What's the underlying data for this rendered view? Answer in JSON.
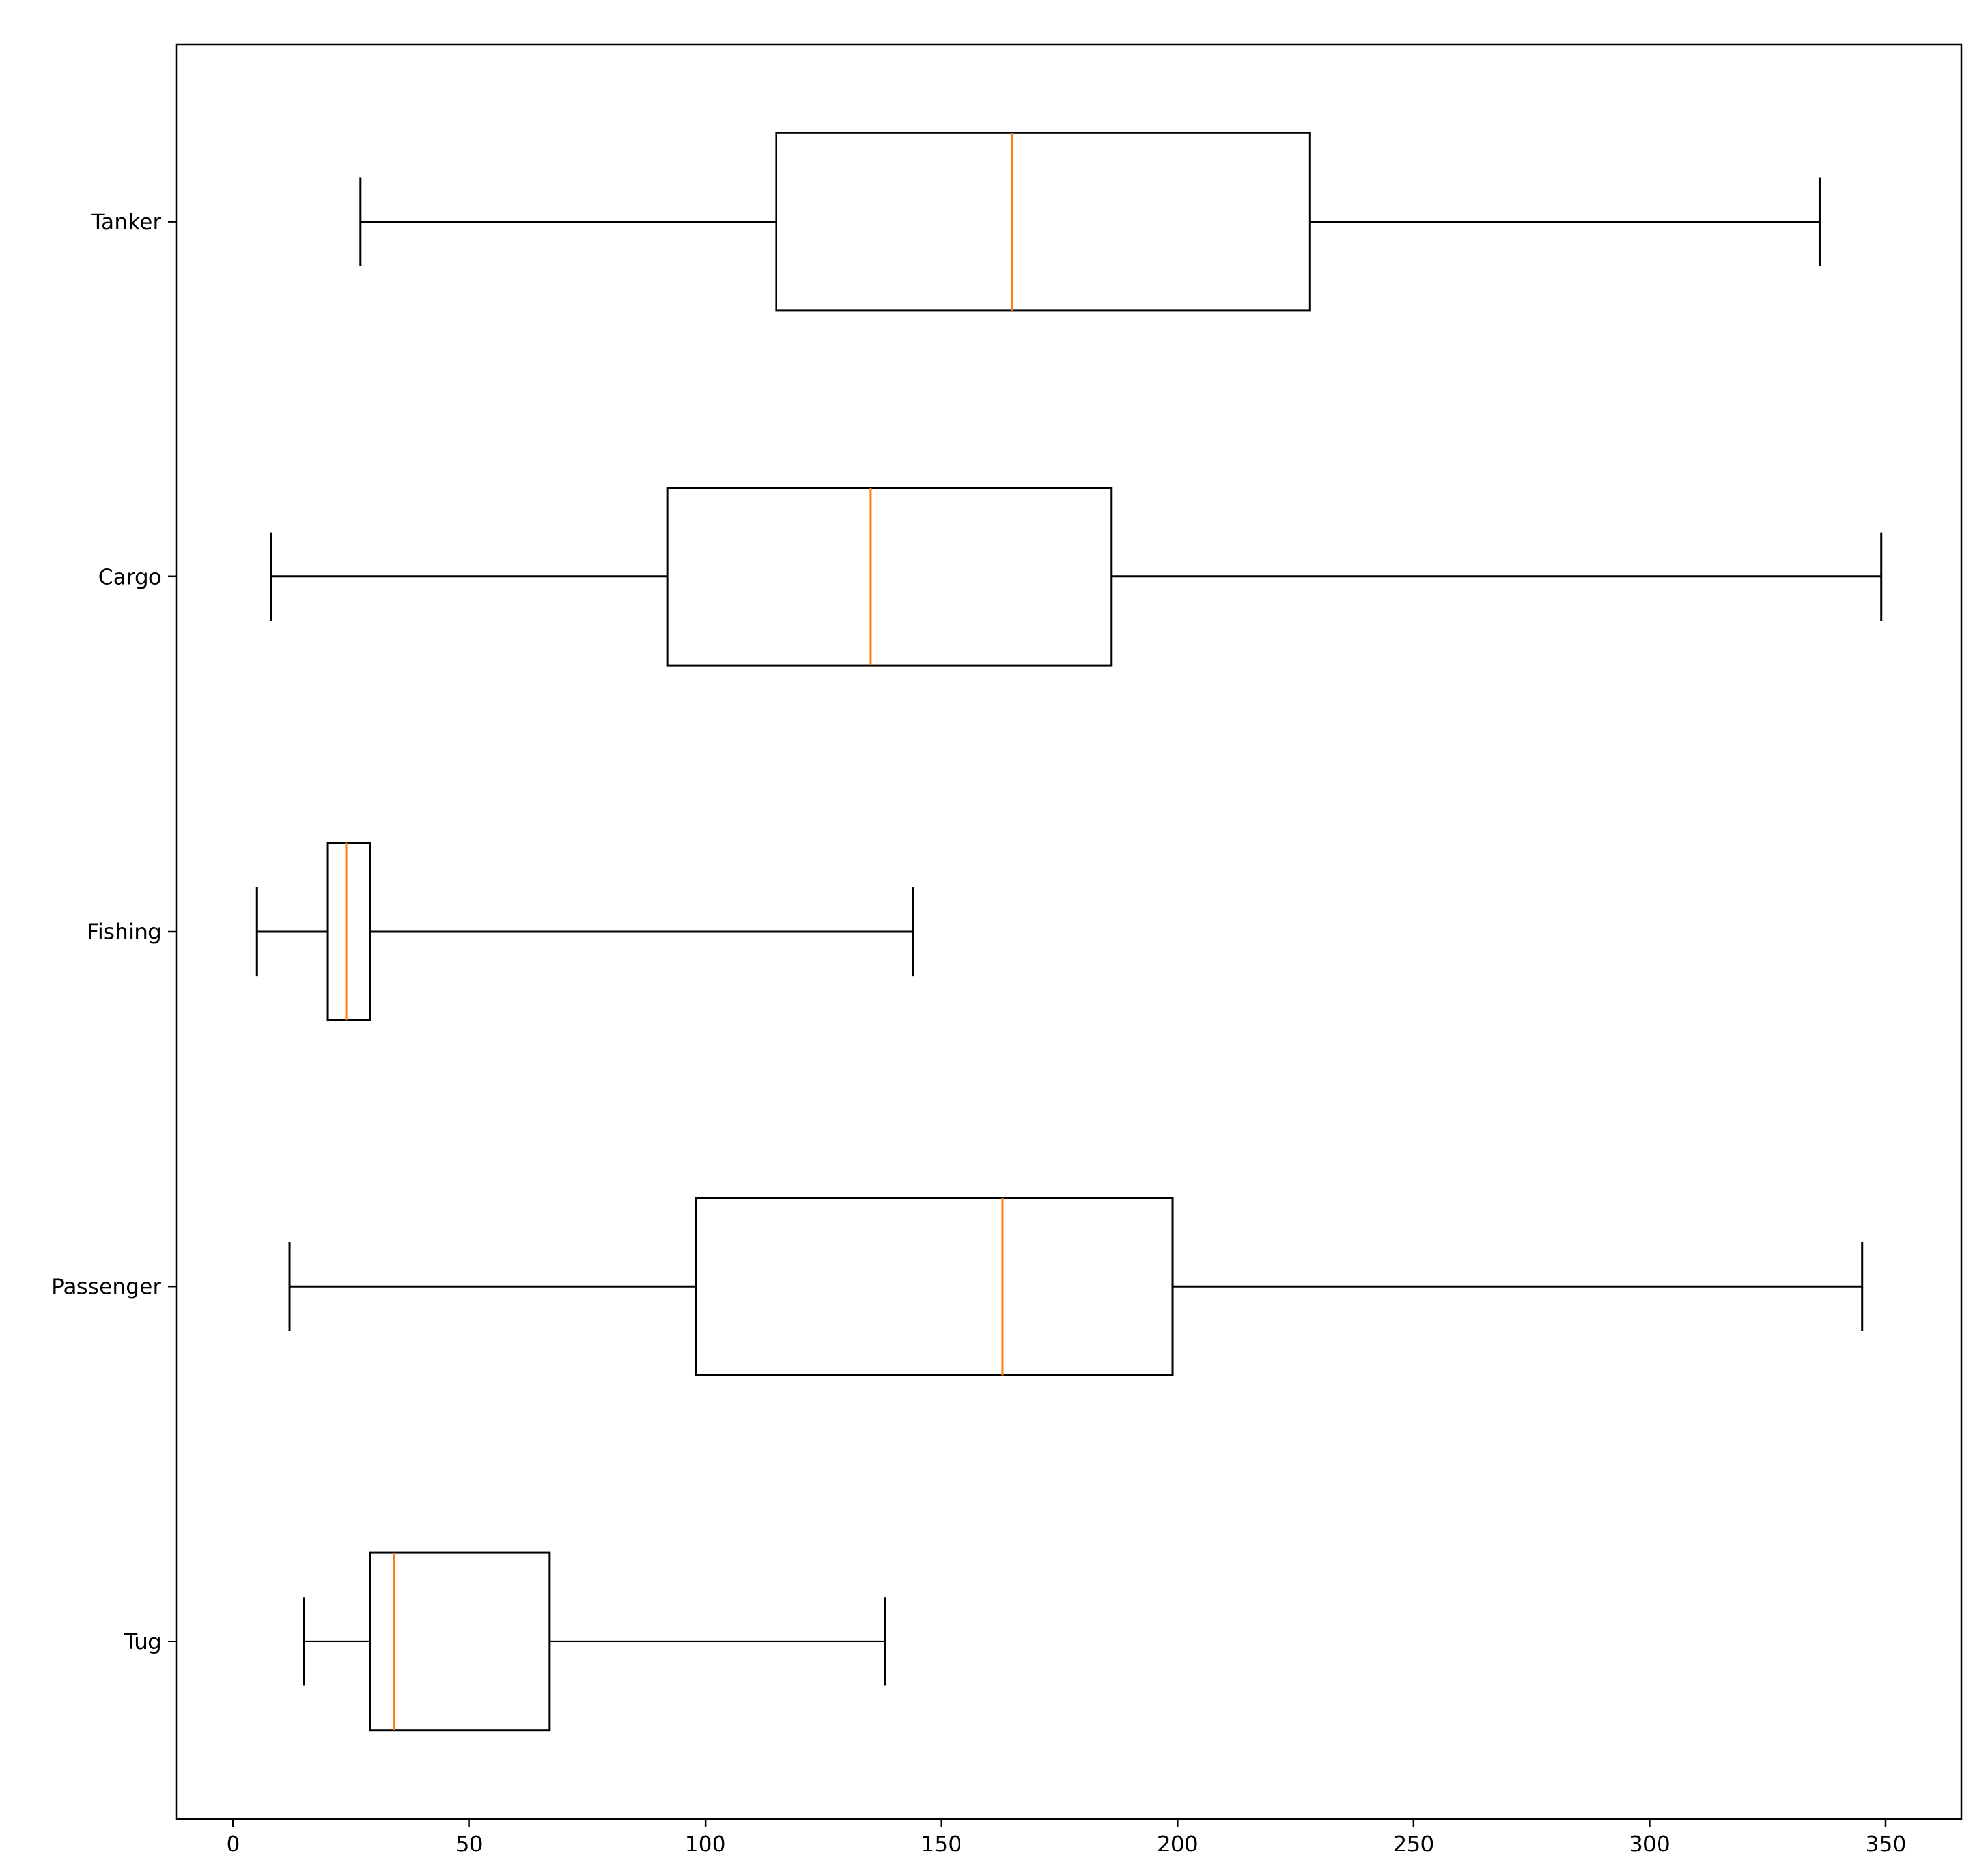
{
  "chart_data": {
    "type": "boxplot",
    "orientation": "horizontal",
    "title": "",
    "xlabel": "",
    "ylabel": "",
    "xlim": [
      -12,
      366
    ],
    "x_ticks": [
      0,
      50,
      100,
      150,
      200,
      250,
      300,
      350
    ],
    "x_tick_labels": [
      "0",
      "50",
      "100",
      "150",
      "200",
      "250",
      "300",
      "350"
    ],
    "categories": [
      "Tanker",
      "Cargo",
      "Fishing",
      "Passenger",
      "Tug"
    ],
    "boxes": [
      {
        "label": "Tanker",
        "whisker_low": 27,
        "q1": 115,
        "median": 165,
        "q3": 228,
        "whisker_high": 336
      },
      {
        "label": "Cargo",
        "whisker_low": 8,
        "q1": 92,
        "median": 135,
        "q3": 186,
        "whisker_high": 349
      },
      {
        "label": "Fishing",
        "whisker_low": 5,
        "q1": 20,
        "median": 24,
        "q3": 29,
        "whisker_high": 144
      },
      {
        "label": "Passenger",
        "whisker_low": 12,
        "q1": 98,
        "median": 163,
        "q3": 199,
        "whisker_high": 345
      },
      {
        "label": "Tug",
        "whisker_low": 15,
        "q1": 29,
        "median": 34,
        "q3": 67,
        "whisker_high": 138
      }
    ],
    "grid": false,
    "legend": "none",
    "colors": {
      "box": "#000000",
      "median": "#ff7f0e",
      "background": "#ffffff"
    }
  }
}
